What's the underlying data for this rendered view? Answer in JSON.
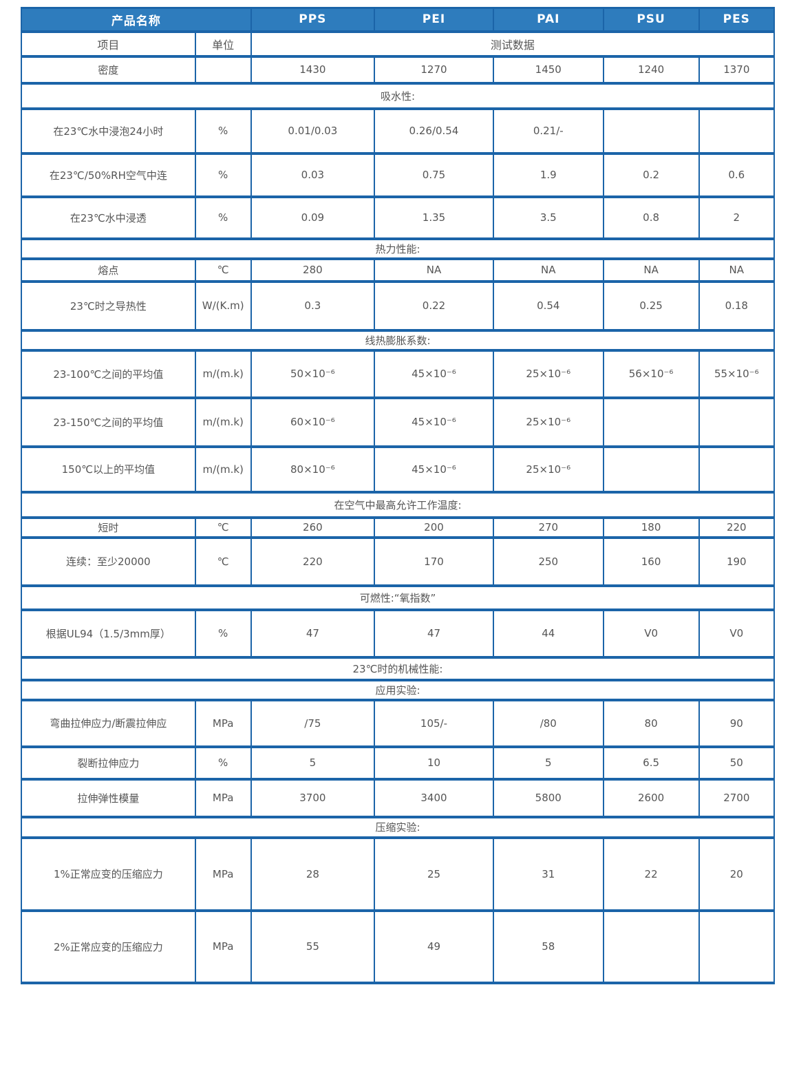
{
  "table": {
    "colors": {
      "header_bg": "#2e7cbd",
      "header_text": "#ffffff",
      "border": "#1b64a8",
      "body_text": "#555555"
    },
    "header": {
      "product_label": "产品名称",
      "columns": [
        "PPS",
        "PEI",
        "PAI",
        "PSU",
        "PES"
      ]
    },
    "subheader": {
      "item_label": "项目",
      "unit_label": "单位",
      "data_label": "测试数据"
    },
    "rows": [
      {
        "type": "data",
        "label": "密度",
        "unit": "",
        "values": [
          "1430",
          "1270",
          "1450",
          "1240",
          "1370"
        ]
      },
      {
        "type": "section",
        "label": "吸水性:"
      },
      {
        "type": "data",
        "label": "在23℃水中浸泡24小时",
        "unit": "%",
        "values": [
          "0.01/0.03",
          "0.26/0.54",
          "0.21/-",
          "",
          ""
        ]
      },
      {
        "type": "data",
        "label": "在23℃/50%RH空气中连",
        "unit": "%",
        "values": [
          "0.03",
          "0.75",
          "1.9",
          "0.2",
          "0.6"
        ]
      },
      {
        "type": "data",
        "label": "在23℃水中浸透",
        "unit": "%",
        "values": [
          "0.09",
          "1.35",
          "3.5",
          "0.8",
          "2"
        ]
      },
      {
        "type": "section",
        "label": "热力性能:"
      },
      {
        "type": "data",
        "label": "熔点",
        "unit": "℃",
        "values": [
          "280",
          "NA",
          "NA",
          "NA",
          "NA"
        ]
      },
      {
        "type": "data",
        "label": "23℃时之导热性",
        "unit": "W/(K.m)",
        "values": [
          "0.3",
          "0.22",
          "0.54",
          "0.25",
          "0.18"
        ]
      },
      {
        "type": "section",
        "label": "线热膨胀系数:"
      },
      {
        "type": "data",
        "label": "23-100℃之间的平均值",
        "unit": "m/(m.k)",
        "values": [
          "50×10⁻⁶",
          "45×10⁻⁶",
          "25×10⁻⁶",
          "56×10⁻⁶",
          "55×10⁻⁶"
        ]
      },
      {
        "type": "data",
        "label": "23-150℃之间的平均值",
        "unit": "m/(m.k)",
        "values": [
          "60×10⁻⁶",
          "45×10⁻⁶",
          "25×10⁻⁶",
          "",
          ""
        ]
      },
      {
        "type": "data",
        "label": "150℃以上的平均值",
        "unit": "m/(m.k)",
        "values": [
          "80×10⁻⁶",
          "45×10⁻⁶",
          "25×10⁻⁶",
          "",
          ""
        ]
      },
      {
        "type": "section",
        "label": "在空气中最高允许工作温度:"
      },
      {
        "type": "data",
        "label": "短时",
        "unit": "℃",
        "values": [
          "260",
          "200",
          "270",
          "180",
          "220"
        ]
      },
      {
        "type": "data",
        "label": "连续：至少20000",
        "unit": "℃",
        "values": [
          "220",
          "170",
          "250",
          "160",
          "190"
        ]
      },
      {
        "type": "section",
        "label": "可燃性:“氧指数”"
      },
      {
        "type": "data",
        "label": "根据UL94（1.5/3mm厚）",
        "unit": "%",
        "values": [
          "47",
          "47",
          "44",
          "V0",
          "V0"
        ]
      },
      {
        "type": "section",
        "label": "23℃时的机械性能:"
      },
      {
        "type": "section",
        "label": "应用实验:"
      },
      {
        "type": "data",
        "label": "弯曲拉伸应力/断震拉伸应",
        "unit": "MPa",
        "values": [
          "/75",
          "105/-",
          "/80",
          "80",
          "90"
        ]
      },
      {
        "type": "data",
        "label": "裂断拉伸应力",
        "unit": "%",
        "values": [
          "5",
          "10",
          "5",
          "6.5",
          "50"
        ]
      },
      {
        "type": "data",
        "label": "拉伸弹性模量",
        "unit": "MPa",
        "values": [
          "3700",
          "3400",
          "5800",
          "2600",
          "2700"
        ]
      },
      {
        "type": "section",
        "label": "压缩实验:"
      },
      {
        "type": "data",
        "label": "1%正常应变的压缩应力",
        "unit": "MPa",
        "values": [
          "28",
          "25",
          "31",
          "22",
          "20"
        ]
      },
      {
        "type": "data",
        "label": "2%正常应变的压缩应力",
        "unit": "MPa",
        "values": [
          "55",
          "49",
          "58",
          "",
          ""
        ]
      }
    ]
  }
}
